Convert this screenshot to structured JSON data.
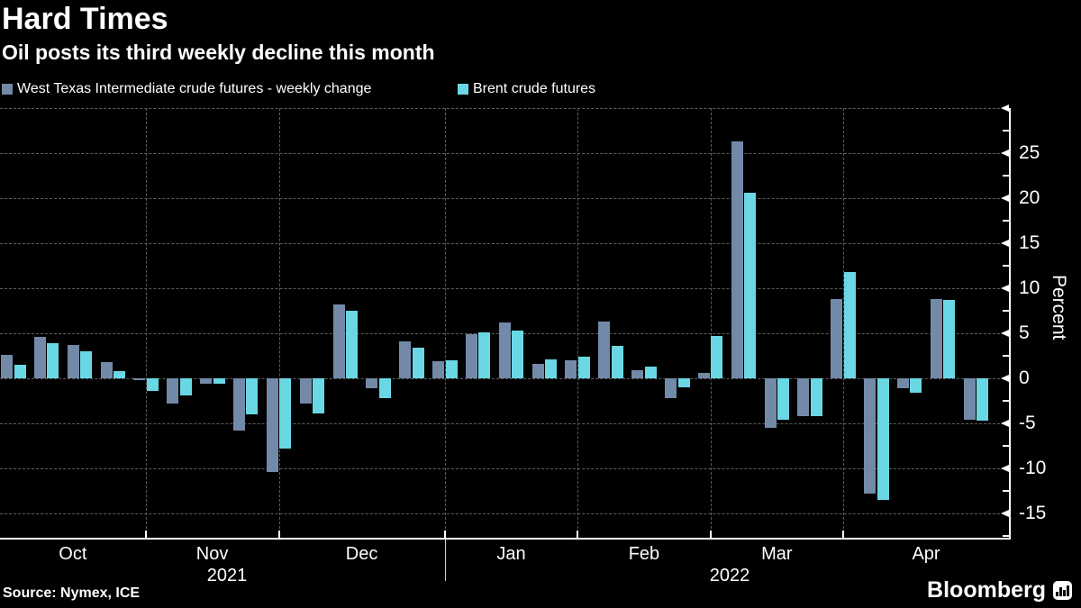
{
  "chart_data": {
    "type": "bar",
    "title": "Hard Times",
    "subtitle": "Oil posts its third weekly decline this month",
    "ylabel": "Percent",
    "ylim": [
      -17.7,
      30
    ],
    "grid": "dashed-horizontal-and-month-boundaries",
    "legend_position": "top-left",
    "y_tick_labels": [
      25,
      20,
      15,
      10,
      5,
      0,
      -5,
      -10,
      -15
    ],
    "y_gridlines": [
      30,
      25,
      20,
      15,
      10,
      5,
      0,
      -5,
      -10,
      -15
    ],
    "y_minor_ticks": [
      27.5,
      22.5,
      17.5,
      12.5,
      7.5,
      2.5,
      -2.5,
      -7.5,
      -12.5,
      -17.5
    ],
    "x_axis": {
      "months": [
        "Oct",
        "Nov",
        "Dec",
        "Jan",
        "Feb",
        "Mar",
        "Apr"
      ],
      "years": [
        "2021",
        "2022"
      ],
      "weeks_total": 30
    },
    "series": [
      {
        "name": "West Texas Intermediate crude futures - weekly change",
        "color": "#7389A8",
        "values": [
          2.6,
          4.6,
          3.7,
          1.8,
          -0.2,
          -2.8,
          -0.6,
          -5.8,
          -10.4,
          -2.8,
          8.2,
          -1.1,
          4.1,
          1.9,
          4.9,
          6.2,
          1.6,
          2.0,
          6.3,
          0.9,
          -2.2,
          0.6,
          26.3,
          -5.5,
          -4.2,
          8.8,
          -12.8,
          -1.1,
          8.8,
          -4.6
        ]
      },
      {
        "name": "Brent crude futures",
        "color": "#6AD7E5",
        "values": [
          1.5,
          3.9,
          3.0,
          0.8,
          -1.4,
          -1.9,
          -0.6,
          -4.0,
          -7.8,
          -3.9,
          7.5,
          -2.2,
          3.4,
          2.0,
          5.1,
          5.3,
          2.1,
          2.4,
          3.6,
          1.3,
          -1.0,
          4.7,
          20.6,
          -4.6,
          -4.2,
          11.8,
          -13.5,
          -1.6,
          8.7,
          -4.7
        ]
      }
    ]
  },
  "legend": {
    "items": [
      {
        "label": "West Texas Intermediate crude futures - weekly change",
        "color": "#7389A8"
      },
      {
        "label": "Brent crude futures",
        "color": "#6AD7E5"
      }
    ]
  },
  "footer": {
    "source": "Source: Nymex, ICE",
    "brand": "Bloomberg"
  },
  "colors": {
    "background": "#000000",
    "text": "#FFFFFF",
    "gridline": "#5E5E5E",
    "axis": "#FFFFFF"
  }
}
